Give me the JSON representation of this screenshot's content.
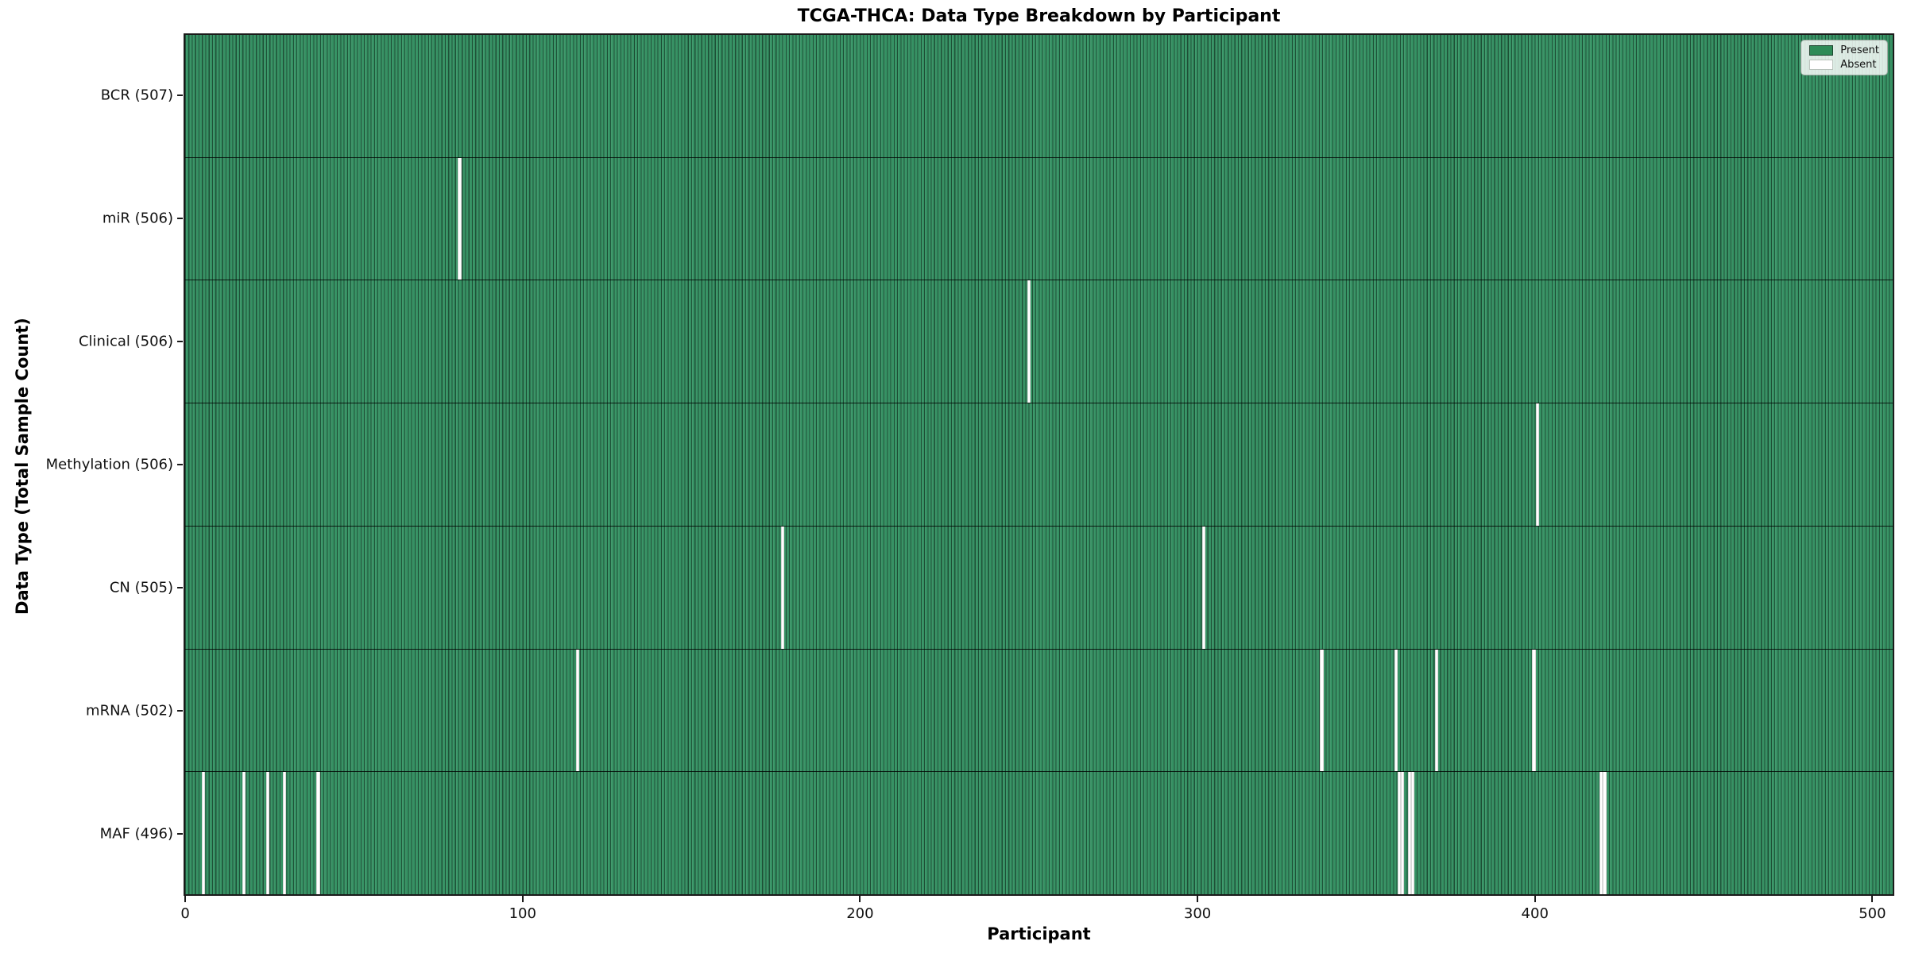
{
  "chart_data": {
    "type": "heatmap",
    "title": "TCGA-THCA: Data Type Breakdown by Participant",
    "xlabel": "Participant",
    "ylabel": "Data Type (Total Sample Count)",
    "x_ticks": [
      0,
      100,
      200,
      300,
      400,
      500
    ],
    "x_range": [
      0,
      506
    ],
    "n_participants": 507,
    "grid": false,
    "legend_position": "upper right",
    "legend": [
      {
        "label": "Present",
        "color": "#2E8B57"
      },
      {
        "label": "Absent",
        "color": "#FFFFFF"
      }
    ],
    "colors": {
      "present_fill": "#2E8B57",
      "absent_fill": "#FFFFFF",
      "bar_edge": "#1C5A3A",
      "spine": "#1A1A1A",
      "background": "#FFFFFF"
    },
    "rows": [
      {
        "data_type": "BCR",
        "label": "BCR (507)",
        "total": 507,
        "absent_participants": []
      },
      {
        "data_type": "miR",
        "label": "miR (506)",
        "total": 506,
        "absent_participants": [
          81
        ]
      },
      {
        "data_type": "Clinical",
        "label": "Clinical (506)",
        "total": 506,
        "absent_participants": [
          250
        ]
      },
      {
        "data_type": "Methylation",
        "label": "Methylation (506)",
        "total": 506,
        "absent_participants": [
          401
        ]
      },
      {
        "data_type": "CN",
        "label": "CN (505)",
        "total": 505,
        "absent_participants": [
          177,
          302
        ]
      },
      {
        "data_type": "mRNA",
        "label": "mRNA (502)",
        "total": 502,
        "absent_participants": [
          116,
          337,
          359,
          371,
          400
        ]
      },
      {
        "data_type": "MAF",
        "label": "MAF (496)",
        "total": 496,
        "absent_participants": [
          5,
          17,
          24,
          29,
          39,
          360,
          361,
          363,
          364,
          420,
          421
        ]
      }
    ]
  }
}
